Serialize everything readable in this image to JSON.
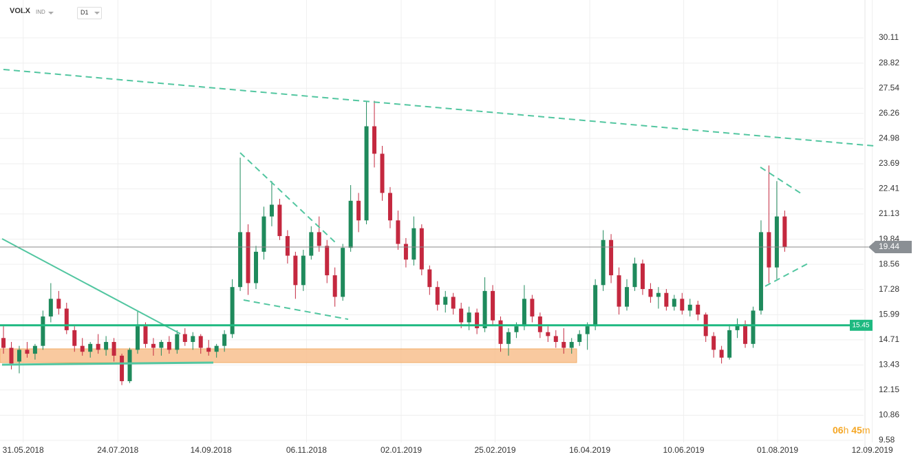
{
  "header": {
    "symbol": "VOLX",
    "market": "IND",
    "timeframe": "D1"
  },
  "timer": {
    "hours": "06",
    "hours_unit": "h",
    "minutes": "45",
    "minutes_unit": "m"
  },
  "chart_data": {
    "type": "candlestick",
    "ylim": [
      9.23,
      32.04
    ],
    "yticks": [
      30.11,
      28.82,
      27.54,
      26.26,
      24.98,
      23.69,
      22.41,
      21.13,
      19.84,
      18.56,
      17.28,
      15.99,
      14.71,
      13.43,
      12.15,
      10.86,
      9.58
    ],
    "xlim": [
      -0.44,
      115.1
    ],
    "xticks": [
      {
        "value": 2.5,
        "label": "31.05.2018"
      },
      {
        "value": 14.5,
        "label": "24.07.2018"
      },
      {
        "value": 26.3,
        "label": "14.09.2018"
      },
      {
        "value": 38.4,
        "label": "06.11.2018"
      },
      {
        "value": 50.4,
        "label": "02.01.2019"
      },
      {
        "value": 62.3,
        "label": "25.02.2019"
      },
      {
        "value": 74.3,
        "label": "16.04.2019"
      },
      {
        "value": 86.2,
        "label": "10.06.2019"
      },
      {
        "value": 98.1,
        "label": "01.08.2019"
      },
      {
        "value": 110.1,
        "label": "12.09.2019"
      }
    ],
    "grid": true,
    "up_color": "#1f8a5c",
    "down_color": "#c4283f",
    "last_price": 19.44,
    "level": 15.45,
    "level_color": "#1eb980",
    "ohlc": [
      [
        14.8,
        15.4,
        14.0,
        14.3
      ],
      [
        14.3,
        14.6,
        13.2,
        13.5
      ],
      [
        13.6,
        14.4,
        13.0,
        14.2
      ],
      [
        14.2,
        14.6,
        13.8,
        14.0
      ],
      [
        14.0,
        14.5,
        13.7,
        14.4
      ],
      [
        14.4,
        16.2,
        14.2,
        15.9
      ],
      [
        15.9,
        17.6,
        15.6,
        16.8
      ],
      [
        16.8,
        17.2,
        16.0,
        16.3
      ],
      [
        16.3,
        16.6,
        15.0,
        15.2
      ],
      [
        15.2,
        15.4,
        14.1,
        14.4
      ],
      [
        14.4,
        14.8,
        13.9,
        14.1
      ],
      [
        14.1,
        14.6,
        13.8,
        14.5
      ],
      [
        14.5,
        15.0,
        14.0,
        14.2
      ],
      [
        14.2,
        14.9,
        13.9,
        14.6
      ],
      [
        14.6,
        14.8,
        13.6,
        13.9
      ],
      [
        13.9,
        14.0,
        12.4,
        12.6
      ],
      [
        12.6,
        14.3,
        12.5,
        14.2
      ],
      [
        14.2,
        16.2,
        14.0,
        15.4
      ],
      [
        15.4,
        15.6,
        14.3,
        14.5
      ],
      [
        14.5,
        14.8,
        13.9,
        14.3
      ],
      [
        14.3,
        14.7,
        13.9,
        14.6
      ],
      [
        14.6,
        14.9,
        14.0,
        14.2
      ],
      [
        14.2,
        15.2,
        14.0,
        15.0
      ],
      [
        15.0,
        15.3,
        14.4,
        14.6
      ],
      [
        14.6,
        15.1,
        14.2,
        14.9
      ],
      [
        14.9,
        15.0,
        14.0,
        14.3
      ],
      [
        14.3,
        14.7,
        13.9,
        14.1
      ],
      [
        14.1,
        14.5,
        13.8,
        14.4
      ],
      [
        14.4,
        15.2,
        14.1,
        15.0
      ],
      [
        15.0,
        17.8,
        14.8,
        17.4
      ],
      [
        17.4,
        24.0,
        17.2,
        20.2
      ],
      [
        20.2,
        20.6,
        17.0,
        17.6
      ],
      [
        17.6,
        19.5,
        17.3,
        19.2
      ],
      [
        19.2,
        21.5,
        18.8,
        21.0
      ],
      [
        21.0,
        22.8,
        20.5,
        21.6
      ],
      [
        21.6,
        21.9,
        19.8,
        20.0
      ],
      [
        20.0,
        20.3,
        18.6,
        19.0
      ],
      [
        19.0,
        19.2,
        16.8,
        17.5
      ],
      [
        17.5,
        19.3,
        17.2,
        19.0
      ],
      [
        19.0,
        20.5,
        18.8,
        20.2
      ],
      [
        20.2,
        21.0,
        19.2,
        19.5
      ],
      [
        19.5,
        19.8,
        17.6,
        18.0
      ],
      [
        18.0,
        18.4,
        16.4,
        16.9
      ],
      [
        16.9,
        19.6,
        16.7,
        19.4
      ],
      [
        19.4,
        22.6,
        19.2,
        21.8
      ],
      [
        21.8,
        22.2,
        20.2,
        20.8
      ],
      [
        20.8,
        26.9,
        20.6,
        25.6
      ],
      [
        25.6,
        26.9,
        23.5,
        24.2
      ],
      [
        24.2,
        24.6,
        21.8,
        22.2
      ],
      [
        22.2,
        22.5,
        20.4,
        20.8
      ],
      [
        20.8,
        21.3,
        19.3,
        19.6
      ],
      [
        19.6,
        19.9,
        18.4,
        18.8
      ],
      [
        18.8,
        21.0,
        18.5,
        20.4
      ],
      [
        20.4,
        20.6,
        18.0,
        18.3
      ],
      [
        18.3,
        18.5,
        17.0,
        17.4
      ],
      [
        17.4,
        17.7,
        16.2,
        16.5
      ],
      [
        16.5,
        17.2,
        16.1,
        16.9
      ],
      [
        16.9,
        17.1,
        16.0,
        16.3
      ],
      [
        16.3,
        16.6,
        15.3,
        15.6
      ],
      [
        15.6,
        16.4,
        15.2,
        16.1
      ],
      [
        16.1,
        16.3,
        15.0,
        15.3
      ],
      [
        15.3,
        17.9,
        15.1,
        17.2
      ],
      [
        17.2,
        17.5,
        15.4,
        15.7
      ],
      [
        15.7,
        15.9,
        14.1,
        14.5
      ],
      [
        14.5,
        15.3,
        13.9,
        15.1
      ],
      [
        15.1,
        15.6,
        14.8,
        15.4
      ],
      [
        15.4,
        17.5,
        15.2,
        16.8
      ],
      [
        16.8,
        17.0,
        15.6,
        15.9
      ],
      [
        15.9,
        16.1,
        14.8,
        15.1
      ],
      [
        15.1,
        15.4,
        14.6,
        14.9
      ],
      [
        14.9,
        15.2,
        14.3,
        14.6
      ],
      [
        14.6,
        15.3,
        14.0,
        14.3
      ],
      [
        14.3,
        14.8,
        14.0,
        14.6
      ],
      [
        14.6,
        15.2,
        14.4,
        15.0
      ],
      [
        15.0,
        15.6,
        14.2,
        15.4
      ],
      [
        15.4,
        17.8,
        15.2,
        17.5
      ],
      [
        17.5,
        20.3,
        17.2,
        19.8
      ],
      [
        19.8,
        20.1,
        17.6,
        18.0
      ],
      [
        18.0,
        18.4,
        16.0,
        16.4
      ],
      [
        16.4,
        17.8,
        16.2,
        17.4
      ],
      [
        17.4,
        18.9,
        17.2,
        18.6
      ],
      [
        18.6,
        18.8,
        17.0,
        17.3
      ],
      [
        17.3,
        17.6,
        16.6,
        16.9
      ],
      [
        16.9,
        17.4,
        16.3,
        17.1
      ],
      [
        17.1,
        17.3,
        16.2,
        16.4
      ],
      [
        16.4,
        17.0,
        16.2,
        16.8
      ],
      [
        16.8,
        17.1,
        16.0,
        16.2
      ],
      [
        16.2,
        16.8,
        15.9,
        16.5
      ],
      [
        16.5,
        16.7,
        15.7,
        16.0
      ],
      [
        16.0,
        16.1,
        14.6,
        14.9
      ],
      [
        14.9,
        15.1,
        13.8,
        14.2
      ],
      [
        14.2,
        14.4,
        13.5,
        13.8
      ],
      [
        13.8,
        15.5,
        13.7,
        15.2
      ],
      [
        15.2,
        15.8,
        14.8,
        15.5
      ],
      [
        15.5,
        15.7,
        14.3,
        14.5
      ],
      [
        14.5,
        16.4,
        14.3,
        16.2
      ],
      [
        16.2,
        20.8,
        16.0,
        20.2
      ],
      [
        20.2,
        23.6,
        17.6,
        18.4
      ],
      [
        18.4,
        22.8,
        17.8,
        21.0
      ],
      [
        21.0,
        21.3,
        19.2,
        19.44
      ]
    ]
  }
}
